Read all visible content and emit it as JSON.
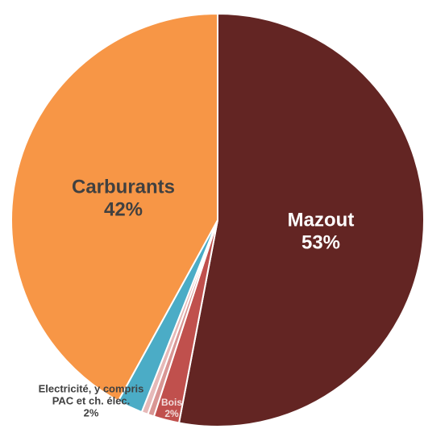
{
  "chart_data": {
    "type": "pie",
    "categories": [
      "Mazout",
      "Bois",
      null,
      null,
      "Electricité, y compris PAC et ch. élec.",
      "Carburants"
    ],
    "values": [
      53,
      2,
      0.5,
      0.5,
      2,
      42
    ],
    "value_labels": [
      "53%",
      "2%",
      null,
      null,
      "2%",
      "42%"
    ],
    "colors": [
      "#632523",
      "#c0504d",
      "#d99694",
      "#e6b9b8",
      "#4bacc6",
      "#f79646"
    ]
  }
}
